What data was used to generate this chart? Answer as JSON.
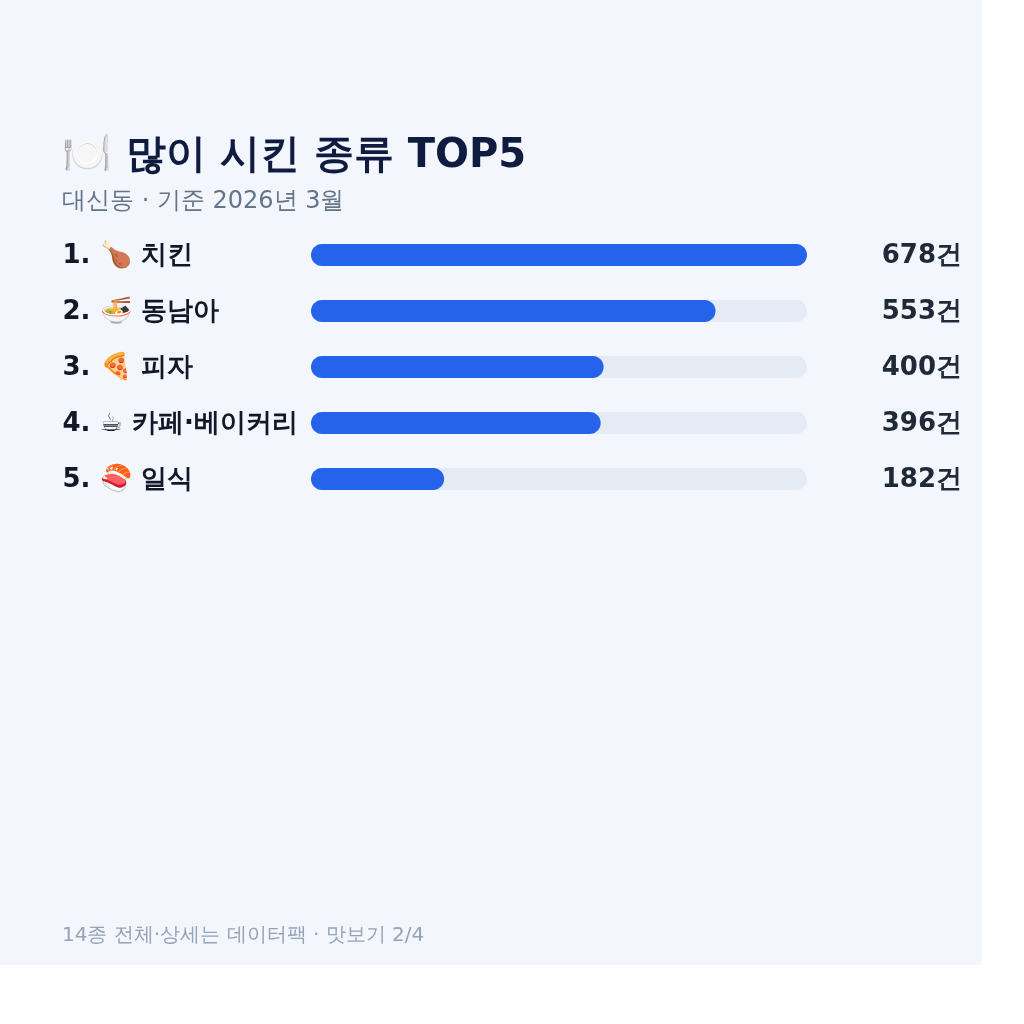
{
  "chart_data": {
    "type": "bar",
    "orientation": "horizontal",
    "title": "🍽️ 많이 시킨 종류 TOP5",
    "subtitle": "대신동 · 기준 2026년 3월",
    "categories": [
      "1. 🍗 치킨",
      "2. 🍜 동남아",
      "3. 🍕 피자",
      "4. ☕ 카페·베이커리",
      "5. 🍣 일식"
    ],
    "values": [
      678,
      553,
      400,
      396,
      182
    ],
    "value_labels": [
      "678건",
      "553건",
      "400건",
      "396건",
      "182건"
    ],
    "color": "#2563eb",
    "xlim": [
      0,
      678
    ],
    "annotations": [
      "14종 전체·상세는 데이터팩 · 맛보기 2/4"
    ]
  }
}
